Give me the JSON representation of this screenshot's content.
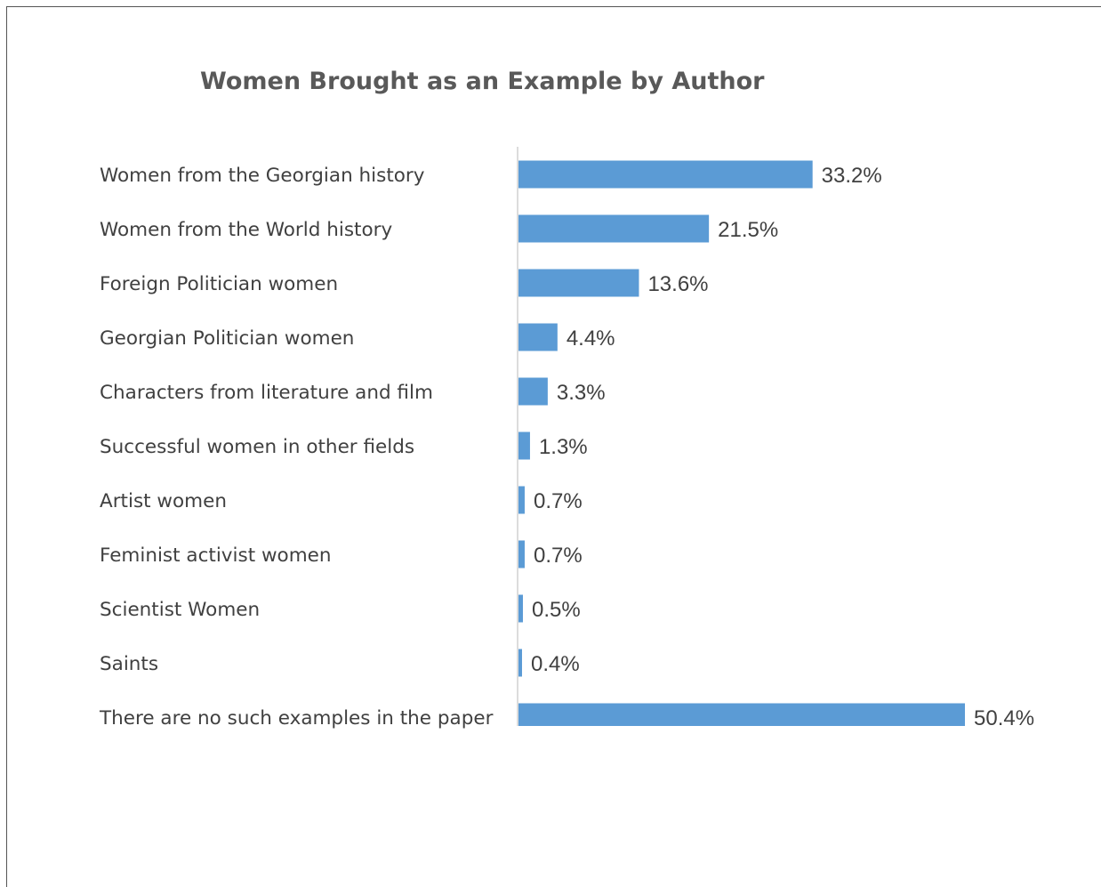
{
  "chart_data": {
    "type": "bar",
    "orientation": "horizontal",
    "title": "Women Brought as an Example by Author",
    "xlabel": "",
    "ylabel": "",
    "categories": [
      "Women from the Georgian history",
      "Women from the World history",
      "Foreign Politician women",
      "Georgian Politician women",
      "Characters from literature and film",
      "Successful women in other fields",
      "Artist women",
      "Feminist activist women",
      "Scientist Women",
      "Saints",
      "There are no such examples in the paper"
    ],
    "values": [
      33.2,
      21.5,
      13.6,
      4.4,
      3.3,
      1.3,
      0.7,
      0.7,
      0.5,
      0.4,
      50.4
    ],
    "value_labels": [
      "33.2%",
      "21.5%",
      "13.6%",
      "4.4%",
      "3.3%",
      "1.3%",
      "0.7%",
      "0.7%",
      "0.5%",
      "0.4%",
      "50.4%"
    ],
    "unit": "%",
    "xlim": [
      0,
      50.4
    ],
    "grid": false,
    "legend": "none",
    "bar_color": "#5b9bd5"
  }
}
